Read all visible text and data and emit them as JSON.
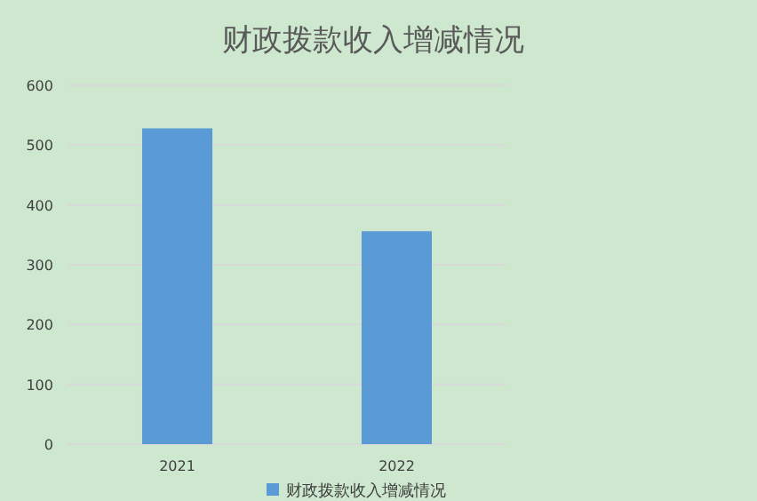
{
  "chart_data": {
    "type": "bar",
    "title": "财政拨款收入增减情况",
    "categories": [
      "2021",
      "2022"
    ],
    "series": [
      {
        "name": "财政拨款收入增减情况",
        "color": "#5b9bd5",
        "values": [
          528,
          356
        ]
      }
    ],
    "ylim": [
      0,
      600
    ],
    "yticks": [
      0,
      100,
      200,
      300,
      400,
      500,
      600
    ],
    "grid": "y",
    "legend": "bottom"
  }
}
